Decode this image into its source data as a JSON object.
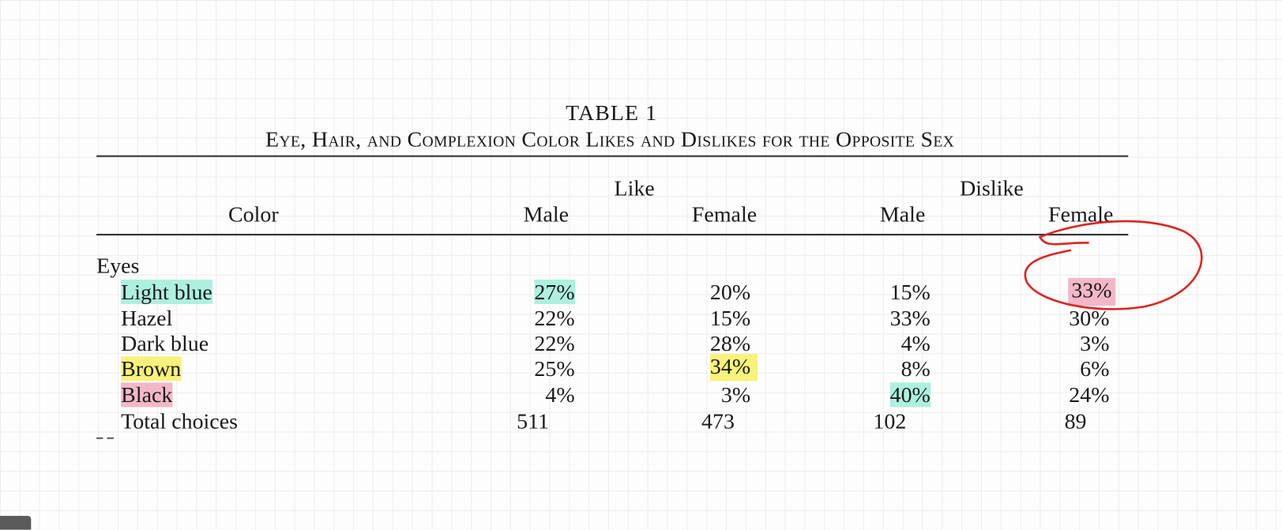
{
  "title": "TABLE 1",
  "subtitle": "Eye, Hair, and Complexion Color Likes and Dislikes for the Opposite Sex",
  "table": {
    "header": {
      "color": "Color",
      "groups": [
        "Like",
        "Dislike"
      ],
      "columns": [
        "Male",
        "Female",
        "Male",
        "Female"
      ]
    },
    "section": "Eyes",
    "rows": [
      [
        "Light blue",
        "27%",
        "20%",
        "15%",
        "33%"
      ],
      [
        "Hazel",
        "22%",
        "15%",
        "33%",
        "30%"
      ],
      [
        "Dark blue",
        "22%",
        "28%",
        "4%",
        "3%"
      ],
      [
        "Brown",
        "25%",
        "34%",
        "8%",
        "6%"
      ],
      [
        "Black",
        "4%",
        "3%",
        "40%",
        "24%"
      ],
      [
        "Total choices",
        "511",
        "473",
        "102",
        "89"
      ]
    ]
  }
}
